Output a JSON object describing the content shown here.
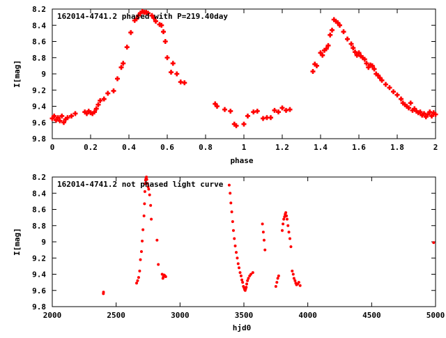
{
  "colors": {
    "points": "#ff0000",
    "axis": "#000000",
    "background": "#ffffff"
  },
  "chart_data": [
    {
      "type": "scatter",
      "title": "162014-4741.2 phased with P=219.40day",
      "xlabel": "phase",
      "ylabel": "I[mag]",
      "xlim": [
        0,
        2
      ],
      "ylim": [
        9.8,
        8.2
      ],
      "y_inverted": true,
      "grid": false,
      "marker": "plus",
      "x_ticks": [
        0,
        0.2,
        0.4,
        0.6,
        0.8,
        1,
        1.2,
        1.4,
        1.6,
        1.8,
        2
      ],
      "x_tick_labels": [
        "0",
        "0.2",
        "0.4",
        "0.6",
        "0.8",
        "1",
        "1.2",
        "1.4",
        "1.6",
        "1.8",
        "2"
      ],
      "y_ticks": [
        8.2,
        8.4,
        8.6,
        8.8,
        9,
        9.2,
        9.4,
        9.6,
        9.8
      ],
      "y_tick_labels": [
        "8.2",
        "8.4",
        "8.6",
        "8.8",
        "9",
        "9.2",
        "9.4",
        "9.6",
        "9.8"
      ],
      "series": [
        {
          "x": [
            0.0,
            0.01,
            0.02,
            0.03,
            0.04,
            0.05,
            0.06,
            0.07,
            0.08,
            0.1,
            0.12,
            0.17,
            0.18,
            0.19,
            0.2,
            0.21,
            0.22,
            0.23,
            0.24,
            0.25,
            0.27,
            0.29,
            0.32,
            0.34,
            0.36,
            0.37,
            0.39,
            0.41,
            0.43,
            0.44,
            0.45,
            0.46,
            0.47,
            0.48,
            0.49,
            0.5,
            0.52,
            0.53,
            0.54,
            0.56,
            0.57,
            0.58,
            0.59,
            0.6,
            0.62,
            0.63,
            0.65,
            0.67,
            0.69,
            0.85,
            0.86,
            0.9,
            0.93,
            0.95,
            0.96,
            1.0,
            1.02,
            1.05,
            1.07,
            1.1,
            1.12,
            1.14,
            1.16,
            1.18,
            1.2,
            1.22,
            1.24,
            1.36,
            1.37,
            1.38,
            1.4,
            1.41,
            1.42,
            1.43,
            1.44,
            1.45,
            1.46,
            1.47,
            1.48,
            1.49,
            1.5,
            1.52,
            1.54,
            1.56,
            1.57,
            1.58,
            1.59,
            1.6,
            1.61,
            1.62,
            1.63,
            1.64,
            1.65,
            1.66,
            1.67,
            1.68,
            1.69,
            1.7,
            1.71,
            1.72,
            1.74,
            1.76,
            1.78,
            1.8,
            1.82,
            1.83,
            1.84,
            1.85,
            1.86,
            1.87,
            1.88,
            1.89,
            1.9,
            1.91,
            1.92,
            1.93,
            1.94,
            1.95,
            1.96,
            1.97,
            1.98,
            1.99,
            2.0
          ],
          "y": [
            9.55,
            9.52,
            9.57,
            9.54,
            9.58,
            9.52,
            9.6,
            9.56,
            9.54,
            9.52,
            9.49,
            9.47,
            9.49,
            9.46,
            9.48,
            9.49,
            9.47,
            9.43,
            9.38,
            9.33,
            9.31,
            9.24,
            9.21,
            9.06,
            8.92,
            8.87,
            8.67,
            8.49,
            8.34,
            8.32,
            8.28,
            8.25,
            8.23,
            8.24,
            8.24,
            8.25,
            8.28,
            8.31,
            8.35,
            8.39,
            8.4,
            8.48,
            8.6,
            8.8,
            8.98,
            8.87,
            9.0,
            9.1,
            9.11,
            9.37,
            9.4,
            9.44,
            9.46,
            9.62,
            9.64,
            9.62,
            9.52,
            9.47,
            9.46,
            9.55,
            9.54,
            9.54,
            9.45,
            9.47,
            9.42,
            9.45,
            9.44,
            8.97,
            8.88,
            8.9,
            8.74,
            8.77,
            8.71,
            8.69,
            8.65,
            8.52,
            8.46,
            8.33,
            8.35,
            8.37,
            8.4,
            8.48,
            8.57,
            8.63,
            8.68,
            8.73,
            8.77,
            8.74,
            8.78,
            8.8,
            8.82,
            8.87,
            8.92,
            8.89,
            8.9,
            8.94,
            9.0,
            9.02,
            9.05,
            9.08,
            9.13,
            9.17,
            9.22,
            9.26,
            9.31,
            9.36,
            9.38,
            9.4,
            9.42,
            9.36,
            9.45,
            9.43,
            9.46,
            9.48,
            9.47,
            9.51,
            9.49,
            9.53,
            9.5,
            9.47,
            9.52,
            9.48,
            9.5
          ]
        }
      ]
    },
    {
      "type": "scatter",
      "title": "162014-4741.2 not phased light curve",
      "xlabel": "hjd0",
      "ylabel": "I[mag]",
      "xlim": [
        2000,
        5000
      ],
      "ylim": [
        9.8,
        8.2
      ],
      "y_inverted": true,
      "grid": false,
      "marker": "dot",
      "x_ticks": [
        2000,
        2500,
        3000,
        3500,
        4000,
        4500,
        5000
      ],
      "x_tick_labels": [
        "2000",
        "2500",
        "3000",
        "3500",
        "4000",
        "4500",
        "5000"
      ],
      "y_ticks": [
        8.2,
        8.4,
        8.6,
        8.8,
        9,
        9.2,
        9.4,
        9.6,
        9.8
      ],
      "y_tick_labels": [
        "8.2",
        "8.4",
        "8.6",
        "8.8",
        "9",
        "9.2",
        "9.4",
        "9.6",
        "9.8"
      ],
      "series": [
        {
          "x": [
            2400,
            2401,
            2660,
            2668,
            2676,
            2684,
            2690,
            2698,
            2704,
            2710,
            2718,
            2722,
            2725,
            2728,
            2730,
            2733,
            2737,
            2740,
            2745,
            2750,
            2755,
            2762,
            2770,
            2775,
            2820,
            2830,
            2860,
            2866,
            2870,
            2876,
            2882,
            2888,
            3385,
            3392,
            3398,
            3405,
            3412,
            3418,
            3425,
            3432,
            3440,
            3448,
            3455,
            3462,
            3470,
            3478,
            3484,
            3490,
            3496,
            3502,
            3506,
            3510,
            3514,
            3518,
            3522,
            3528,
            3535,
            3545,
            3555,
            3570,
            3645,
            3652,
            3658,
            3665,
            3750,
            3758,
            3765,
            3772,
            3800,
            3806,
            3812,
            3818,
            3823,
            3828,
            3833,
            3838,
            3845,
            3852,
            3860,
            3868,
            3878,
            3886,
            3892,
            3900,
            3906,
            3912,
            3920,
            3930,
            3940,
            4985
          ],
          "y": [
            9.64,
            9.62,
            9.51,
            9.48,
            9.44,
            9.36,
            9.22,
            9.12,
            8.99,
            8.85,
            8.68,
            8.53,
            8.38,
            8.28,
            8.24,
            8.22,
            8.2,
            8.23,
            8.28,
            8.32,
            8.35,
            8.42,
            8.55,
            8.72,
            8.98,
            9.28,
            9.4,
            9.45,
            9.43,
            9.41,
            9.42,
            9.43,
            8.3,
            8.4,
            8.52,
            8.63,
            8.75,
            8.86,
            8.96,
            9.05,
            9.13,
            9.2,
            9.27,
            9.32,
            9.38,
            9.42,
            9.47,
            9.5,
            9.55,
            9.57,
            9.59,
            9.6,
            9.58,
            9.56,
            9.52,
            9.48,
            9.45,
            9.42,
            9.4,
            9.38,
            8.78,
            8.88,
            8.98,
            9.1,
            9.55,
            9.5,
            9.45,
            9.42,
            8.86,
            8.78,
            8.72,
            8.69,
            8.66,
            8.64,
            8.68,
            8.72,
            8.8,
            8.88,
            8.96,
            9.06,
            9.36,
            9.4,
            9.45,
            9.48,
            9.51,
            9.53,
            9.52,
            9.5,
            9.54,
            9.01
          ]
        }
      ]
    }
  ]
}
